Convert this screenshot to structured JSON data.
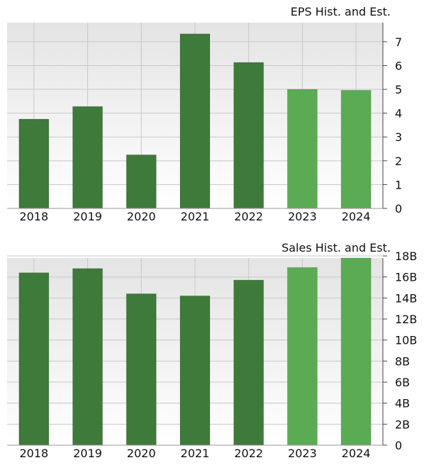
{
  "chart_data": [
    {
      "type": "bar",
      "title": "EPS Hist. and Est.",
      "categories": [
        "2018",
        "2019",
        "2020",
        "2021",
        "2022",
        "2023",
        "2024"
      ],
      "values": [
        3.75,
        4.28,
        2.25,
        7.33,
        6.13,
        5.0,
        4.96
      ],
      "estimate": [
        false,
        false,
        false,
        false,
        false,
        true,
        true
      ],
      "ylim": [
        0,
        7.8
      ],
      "yticks": [
        "0",
        "1",
        "2",
        "3",
        "4",
        "5",
        "6",
        "7"
      ],
      "ytick_values": [
        0,
        1,
        2,
        3,
        4,
        5,
        6,
        7
      ],
      "grid": true,
      "yaxis_side": "right",
      "colors": {
        "historical": "#3e7a3a",
        "estimate": "#5bab55"
      }
    },
    {
      "type": "bar",
      "title": "Sales Hist. and Est.",
      "categories": [
        "2018",
        "2019",
        "2020",
        "2021",
        "2022",
        "2023",
        "2024"
      ],
      "values": [
        16.4,
        16.8,
        14.4,
        14.2,
        15.7,
        16.9,
        17.8
      ],
      "estimate": [
        false,
        false,
        false,
        false,
        false,
        true,
        true
      ],
      "ylim": [
        0,
        17.8
      ],
      "yticks": [
        "0",
        "2B",
        "4B",
        "6B",
        "8B",
        "10B",
        "12B",
        "14B",
        "16B",
        "18B"
      ],
      "ytick_values": [
        0,
        2,
        4,
        6,
        8,
        10,
        12,
        14,
        16,
        18
      ],
      "grid": true,
      "yaxis_side": "right",
      "colors": {
        "historical": "#3e7a3a",
        "estimate": "#5bab55"
      }
    }
  ]
}
